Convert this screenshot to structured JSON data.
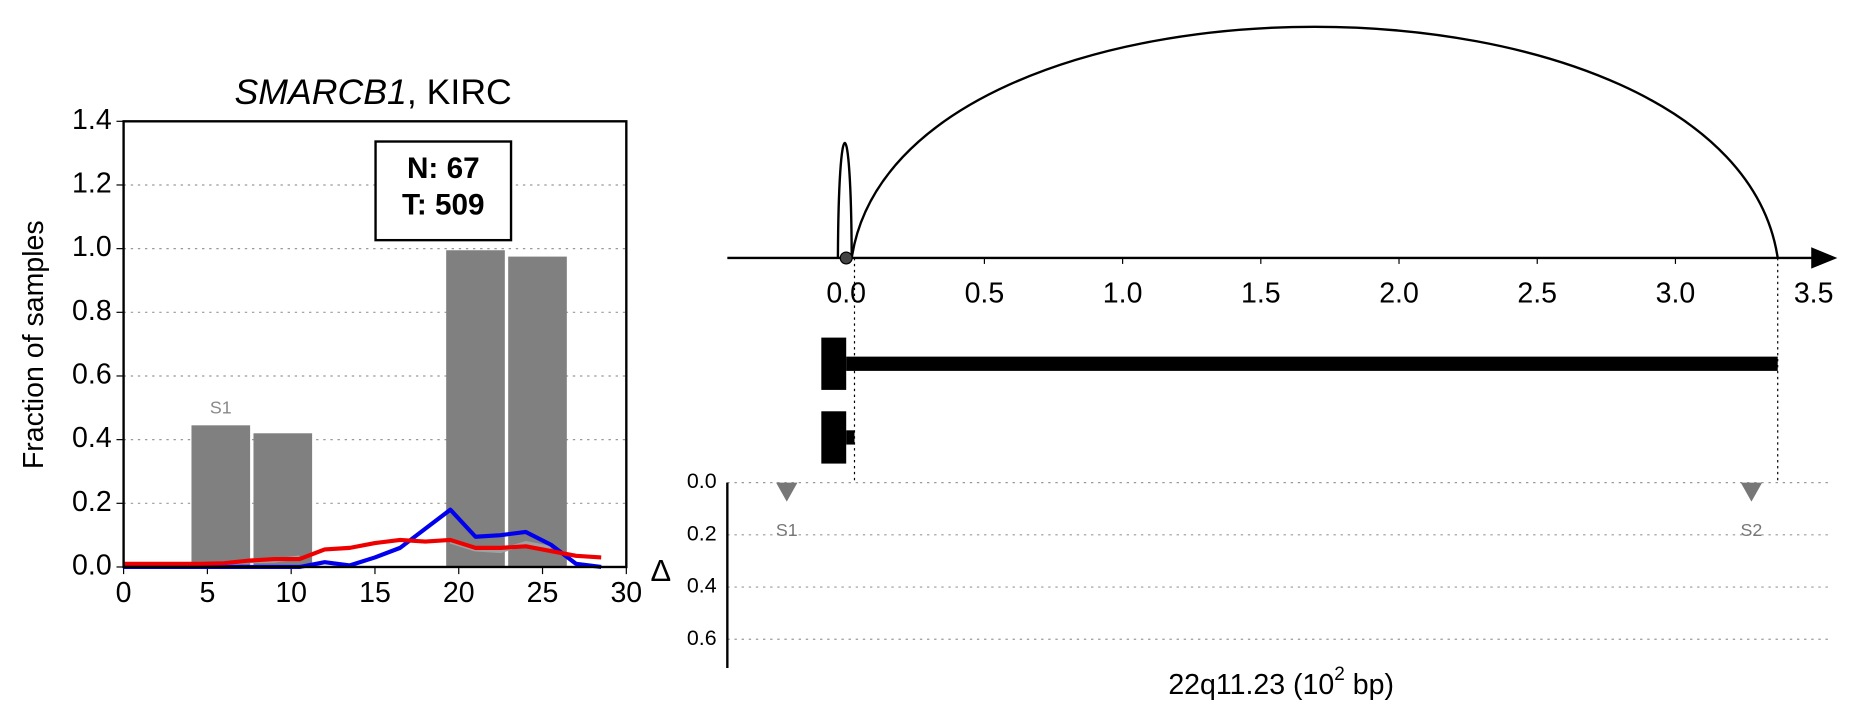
{
  "chart_data": [
    {
      "type": "bar",
      "title_gene": "SMARCB1",
      "title_suffix": ", KIRC",
      "ylabel": "Fraction of samples",
      "annotation": [
        "N: 67",
        "T: 509"
      ],
      "xlim": [
        0,
        30
      ],
      "xticks": [
        0,
        5,
        10,
        15,
        20,
        25,
        30
      ],
      "ylim": [
        0,
        1.4
      ],
      "yticks": [
        {
          "value": 0,
          "label": "0.0"
        },
        0.2,
        0.4,
        0.6,
        0.8,
        {
          "value": 1,
          "label": "1.0"
        },
        1.2,
        1.4
      ],
      "grid": true,
      "bars": {
        "x": [
          5.8,
          9.5,
          21,
          24.7
        ],
        "width": 3.5,
        "values": [
          0.445,
          0.42,
          0.995,
          0.975
        ],
        "labels": [
          "S1",
          null,
          null,
          null
        ],
        "color": "#808080"
      },
      "x": [
        0,
        1.5,
        3,
        4.5,
        6,
        7.5,
        9,
        10.5,
        12,
        13.5,
        15,
        16.5,
        18,
        19.5,
        21,
        22.5,
        24,
        25.5,
        27,
        28.5
      ],
      "series": [
        {
          "color": "#a0a0a0",
          "values": [
            null,
            null,
            null,
            0.01,
            0.012,
            0.018,
            0.02,
            0.03,
            null,
            null,
            null,
            null,
            null,
            0.08,
            0.055,
            0.05,
            0.075,
            0.06,
            null,
            null
          ]
        },
        {
          "color": "#0000ee",
          "values": [
            0,
            0,
            0,
            0,
            0,
            0,
            0,
            0,
            0.015,
            0.005,
            0.03,
            0.06,
            0.12,
            0.18,
            0.095,
            0.1,
            0.11,
            0.07,
            0.01,
            0
          ]
        },
        {
          "color": "#ee0000",
          "values": [
            0.01,
            0.01,
            0.01,
            0.01,
            0.012,
            0.02,
            0.025,
            0.025,
            0.055,
            0.06,
            0.075,
            0.085,
            0.08,
            0.085,
            0.06,
            0.06,
            0.065,
            0.05,
            0.035,
            0.03
          ]
        }
      ]
    },
    {
      "type": "arc",
      "xlim": [
        -0.43,
        3.56
      ],
      "xticks": [
        {
          "value": 0,
          "label": "0.0"
        },
        0.5,
        {
          "value": 1,
          "label": "1.0"
        },
        1.5,
        {
          "value": 2,
          "label": "2.0"
        },
        2.5,
        {
          "value": 3,
          "label": "3.0"
        },
        3.5
      ],
      "arcs": [
        {
          "start": -0.03,
          "end": 0.02
        },
        {
          "start": 0.02,
          "end": 3.37
        }
      ],
      "point": 0,
      "tracks": [
        {
          "start": -0.09,
          "exon_end": 0.0,
          "end": 3.37
        },
        {
          "start": -0.09,
          "exon_end": 0.0,
          "end": 0.03
        }
      ],
      "ylabel": "Δ",
      "ylim": [
        0,
        0.71
      ],
      "yticks": [
        {
          "value": 0,
          "label": "0.0"
        },
        0.2,
        0.4,
        0.6
      ],
      "markers": [
        {
          "label": "S1",
          "x": -0.215
        },
        {
          "label": "S2",
          "x": 3.275
        }
      ],
      "xlabel_prefix": "22q11.23 (10",
      "xlabel_exp": "2",
      "xlabel_suffix": " bp)"
    }
  ]
}
